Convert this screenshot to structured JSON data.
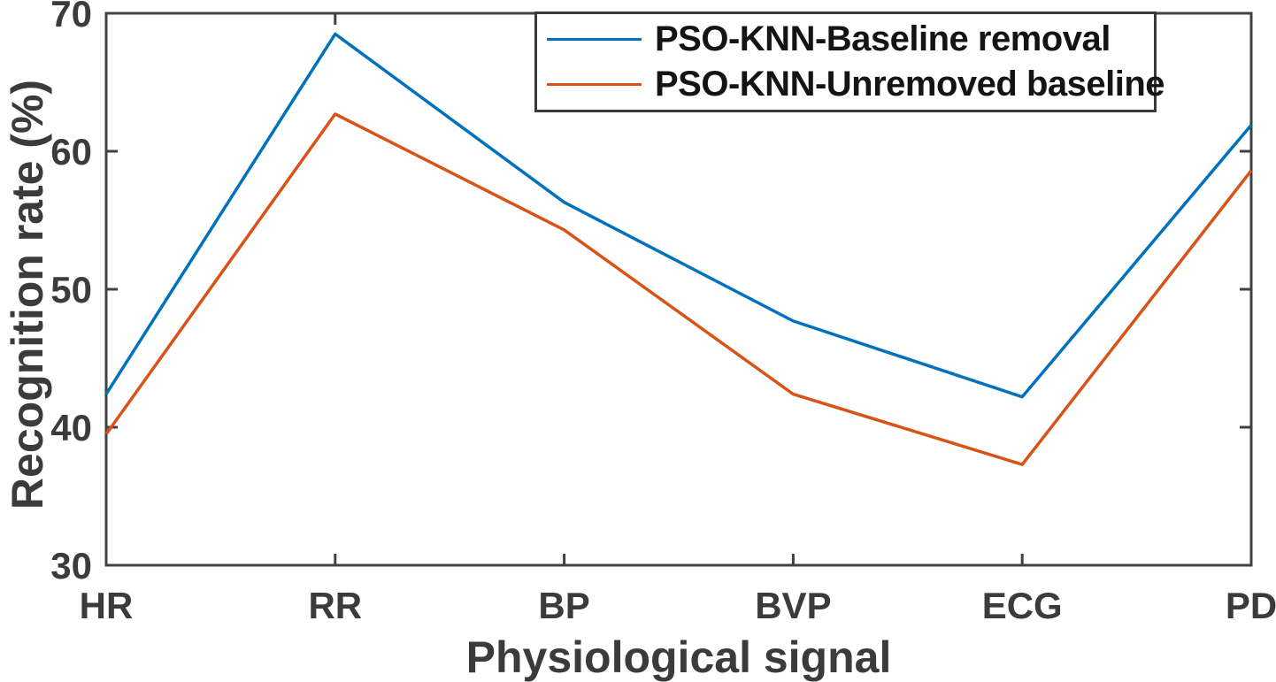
{
  "chart_data": {
    "type": "line",
    "categories": [
      "HR",
      "RR",
      "BP",
      "BVP",
      "ECG",
      "PD"
    ],
    "series": [
      {
        "name": "PSO-KNN-Baseline removal",
        "color": "#0072BD",
        "values": [
          42.4,
          68.5,
          56.3,
          47.7,
          42.2,
          61.9
        ]
      },
      {
        "name": "PSO-KNN-Unremoved baseline",
        "color": "#D95319",
        "values": [
          39.5,
          62.7,
          54.3,
          42.4,
          37.3,
          58.6
        ]
      }
    ],
    "title": "",
    "xlabel": "Physiological signal",
    "ylabel": "Recognition rate (%)",
    "ylim": [
      30,
      70
    ],
    "yticks": [
      30,
      40,
      50,
      60,
      70
    ],
    "grid": false,
    "legend_position": "inside-top-right",
    "box": true,
    "tick_direction": "in",
    "axis_color": "#414141",
    "text_color": "#3b3b3b",
    "legend_text_color": "#141414",
    "legend_border_color": "#3a3a3a",
    "background": "#ffffff"
  }
}
